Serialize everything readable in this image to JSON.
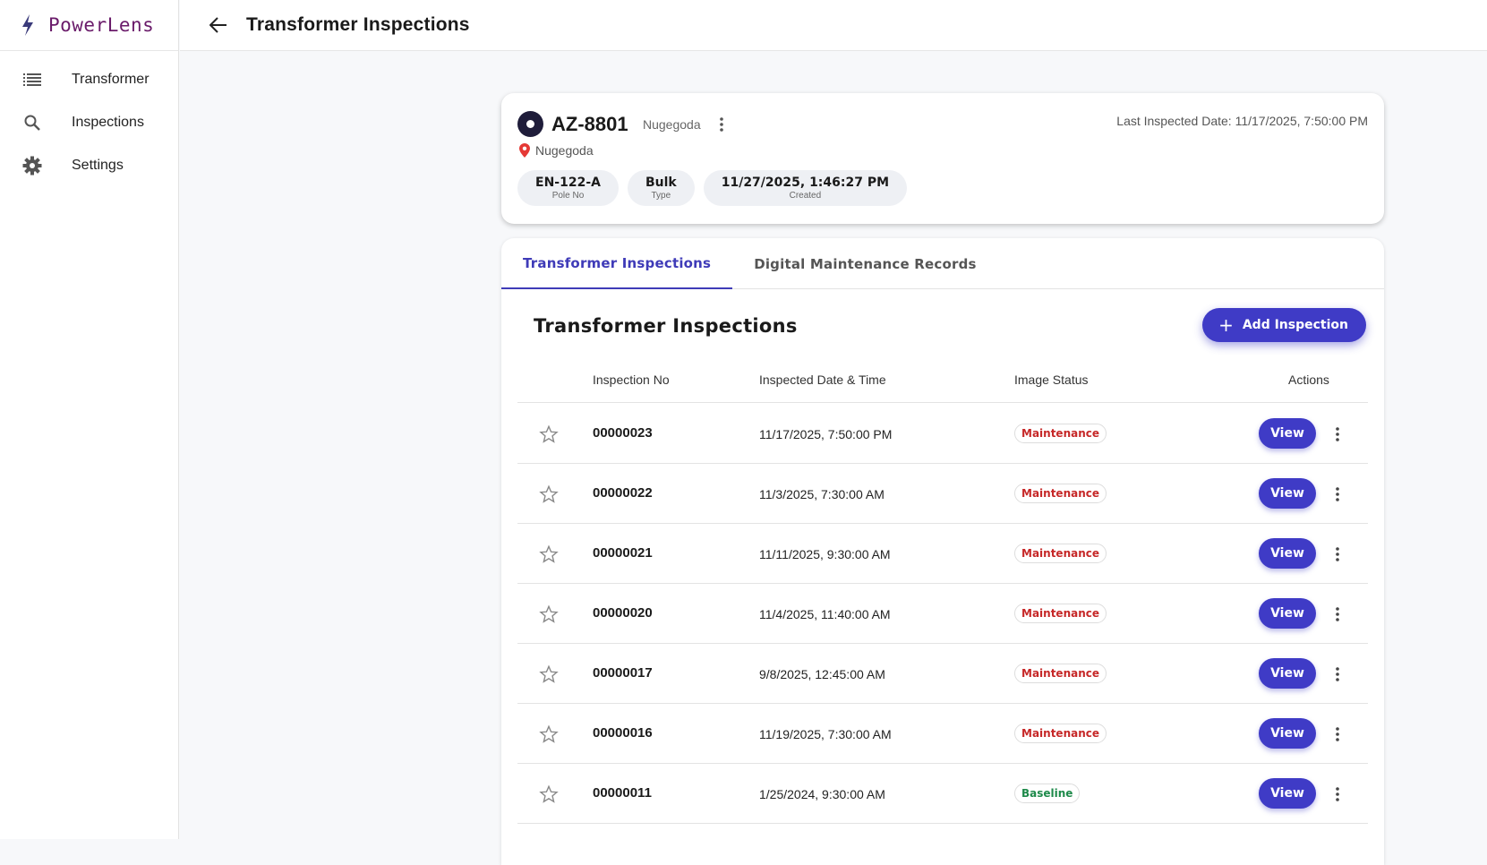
{
  "brand": {
    "name": "PowerLens"
  },
  "sidebar": {
    "items": [
      {
        "label": "Transformer",
        "icon": "list-icon"
      },
      {
        "label": "Inspections",
        "icon": "search-icon"
      },
      {
        "label": "Settings",
        "icon": "gear-icon"
      }
    ]
  },
  "header": {
    "title": "Transformer Inspections"
  },
  "transformer": {
    "id": "AZ-8801",
    "region": "Nugegoda",
    "location": "Nugegoda",
    "last_inspected": "Last Inspected Date: 11/17/2025, 7:50:00 PM",
    "chips": [
      {
        "value": "EN-122-A",
        "key": "Pole No"
      },
      {
        "value": "Bulk",
        "key": "Type"
      },
      {
        "value": "11/27/2025, 1:46:27 PM",
        "key": "Created"
      }
    ]
  },
  "tabs": [
    {
      "label": "Transformer Inspections",
      "active": true
    },
    {
      "label": "Digital Maintenance Records",
      "active": false
    }
  ],
  "section": {
    "title": "Transformer Inspections",
    "add_label": "Add Inspection"
  },
  "table": {
    "columns": [
      "Inspection No",
      "Inspected Date & Time",
      "Image Status",
      "Actions"
    ],
    "view_label": "View",
    "rows": [
      {
        "no": "00000023",
        "date": "11/17/2025, 7:50:00 PM",
        "status": "Maintenance"
      },
      {
        "no": "00000022",
        "date": "11/3/2025, 7:30:00 AM",
        "status": "Maintenance"
      },
      {
        "no": "00000021",
        "date": "11/11/2025, 9:30:00 AM",
        "status": "Maintenance"
      },
      {
        "no": "00000020",
        "date": "11/4/2025, 11:40:00 AM",
        "status": "Maintenance"
      },
      {
        "no": "00000017",
        "date": "9/8/2025, 12:45:00 AM",
        "status": "Maintenance"
      },
      {
        "no": "00000016",
        "date": "11/19/2025, 7:30:00 AM",
        "status": "Maintenance"
      },
      {
        "no": "00000011",
        "date": "1/25/2024, 9:30:00 AM",
        "status": "Baseline"
      }
    ]
  },
  "colors": {
    "accent": "#3f3bc6",
    "maintenance": "#c62828",
    "baseline": "#1e8a4a",
    "brand": "#6a1b6a"
  }
}
